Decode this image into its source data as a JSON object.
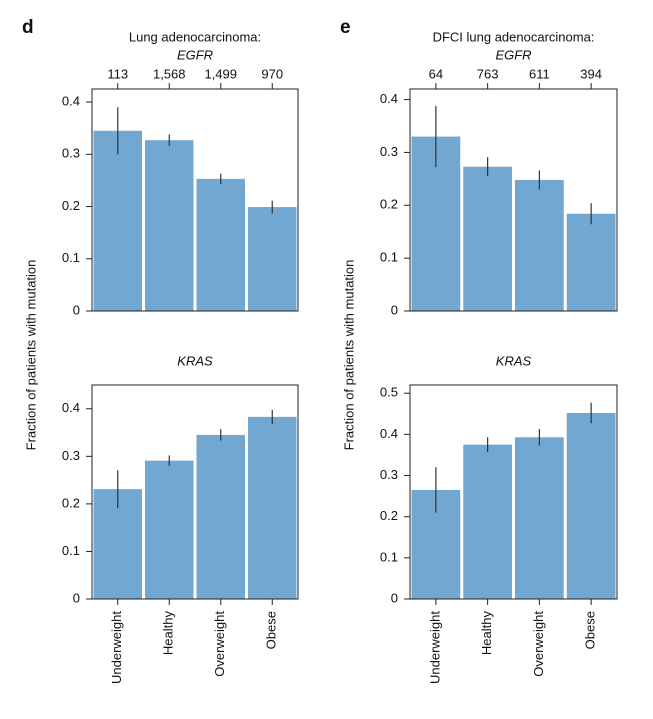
{
  "panels": [
    {
      "letter": "d",
      "ylabel": "Fraction of patients with mutation"
    },
    {
      "letter": "e",
      "ylabel": "Fraction of patients with mutation"
    }
  ],
  "chart_data": [
    {
      "type": "bar",
      "title": "Lung adenocarcinoma:",
      "subtitle": "EGFR",
      "top_labels": [
        "113",
        "1,568",
        "1,499",
        "970"
      ],
      "values": [
        0.345,
        0.327,
        0.253,
        0.199
      ],
      "errors": [
        0.045,
        0.011,
        0.01,
        0.012
      ],
      "color": "#72a7d1",
      "ylim": [
        0,
        0.425
      ],
      "yticks": [
        0,
        0.1,
        0.2,
        0.3,
        0.4
      ]
    },
    {
      "type": "bar",
      "title": "KRAS",
      "categories": [
        "Underweight",
        "Healthy",
        "Overweight",
        "Obese"
      ],
      "values": [
        0.231,
        0.291,
        0.345,
        0.383
      ],
      "errors": [
        0.04,
        0.011,
        0.012,
        0.015
      ],
      "color": "#72a7d1",
      "ylim": [
        0,
        0.45
      ],
      "yticks": [
        0,
        0.1,
        0.2,
        0.3,
        0.4
      ]
    },
    {
      "type": "bar",
      "title": "DFCI lung adenocarcinoma:",
      "subtitle": "EGFR",
      "top_labels": [
        "64",
        "763",
        "611",
        "394"
      ],
      "values": [
        0.33,
        0.273,
        0.248,
        0.184
      ],
      "errors": [
        0.058,
        0.018,
        0.018,
        0.02
      ],
      "color": "#72a7d1",
      "ylim": [
        0,
        0.42
      ],
      "yticks": [
        0,
        0.1,
        0.2,
        0.3,
        0.4
      ]
    },
    {
      "type": "bar",
      "title": "KRAS",
      "categories": [
        "Underweight",
        "Healthy",
        "Overweight",
        "Obese"
      ],
      "values": [
        0.265,
        0.375,
        0.393,
        0.452
      ],
      "errors": [
        0.055,
        0.018,
        0.02,
        0.025
      ],
      "color": "#72a7d1",
      "ylim": [
        0,
        0.52
      ],
      "yticks": [
        0,
        0.1,
        0.2,
        0.3,
        0.4,
        0.5
      ]
    }
  ]
}
